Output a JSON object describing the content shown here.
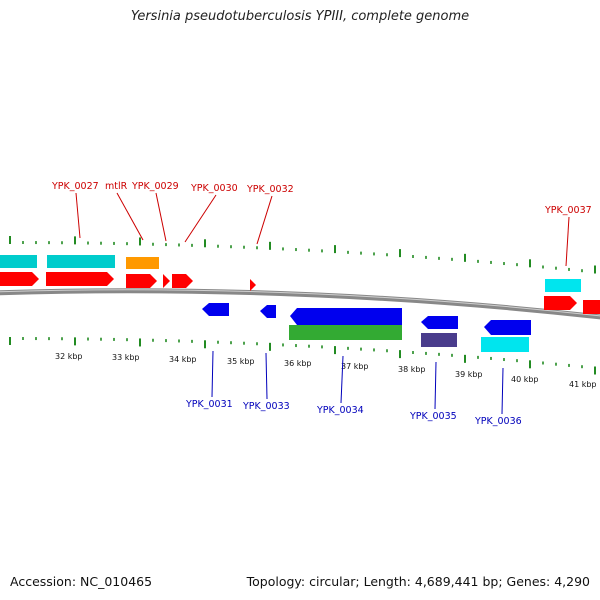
{
  "title": "Yersinia pseudotuberculosis YPIII, complete genome",
  "footer": {
    "accession": "Accession: NC_010465",
    "summary": "Topology: circular; Length: 4,689,441 bp; Genes: 4,290"
  },
  "colors": {
    "forward_cds": "#ff0000",
    "reverse_cds": "#0000ee",
    "forward_other": "#00cccc",
    "forward_orange": "#ff9900",
    "reverse_green": "#33aa33",
    "reverse_purple": "#4a3c8c",
    "reverse_cyan": "#00e5ee",
    "tick": "#228b22",
    "backbone": "#888888",
    "label_forward": "#cc0000",
    "label_reverse": "#0000bb"
  },
  "scale_labels": [
    "32 kbp",
    "33 kbp",
    "34 kbp",
    "35 kbp",
    "36 kbp",
    "37 kbp",
    "38 kbp",
    "39 kbp",
    "40 kbp",
    "41 kbp"
  ],
  "forward_labels": [
    "YPK_0027",
    "mtlR",
    "YPK_0029",
    "YPK_0030",
    "YPK_0032",
    "YPK_0037"
  ],
  "reverse_labels": [
    "YPK_0031",
    "YPK_0033",
    "YPK_0034",
    "YPK_0035",
    "YPK_0036"
  ]
}
